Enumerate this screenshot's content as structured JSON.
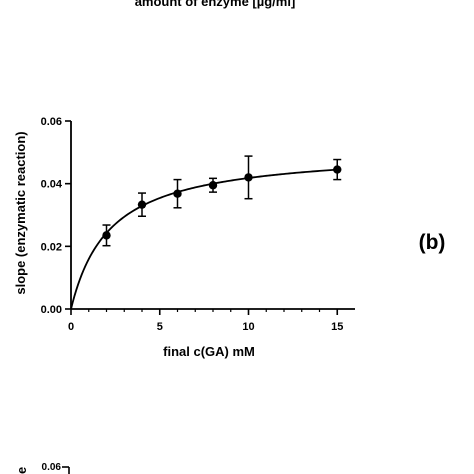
{
  "top_partial": {
    "cut_off_axis_label": "amount of enzyme [µg/ml]"
  },
  "panel_label": "(b)",
  "chart_data": {
    "type": "scatter",
    "title": "",
    "xlabel": "final c(GA) mM",
    "ylabel": "slope (enzymatic reaction)",
    "xlim": [
      0,
      16
    ],
    "ylim": [
      0,
      0.06
    ],
    "x_ticks": [
      0,
      5,
      10,
      15
    ],
    "x_tick_labels": [
      "0",
      "5",
      "10",
      "15"
    ],
    "y_ticks": [
      0,
      0.02,
      0.04,
      0.06
    ],
    "y_tick_labels": [
      "0.00",
      "0.02",
      "0.04",
      "0.06"
    ],
    "grid": false,
    "legend": "none",
    "series": [
      {
        "x": [
          2,
          4,
          6,
          8,
          10,
          15
        ],
        "y": [
          0.0235,
          0.0333,
          0.0368,
          0.0395,
          0.042,
          0.0445
        ],
        "err": [
          0.0033,
          0.0037,
          0.0045,
          0.0022,
          0.0068,
          0.0032
        ]
      }
    ],
    "fit": {
      "model": "michaelis-menten",
      "vmax": 0.051,
      "km": 2.2
    }
  },
  "bottom_partial": {
    "y_tick_top": "0.06",
    "cut_off_ylabel_char": "e"
  }
}
